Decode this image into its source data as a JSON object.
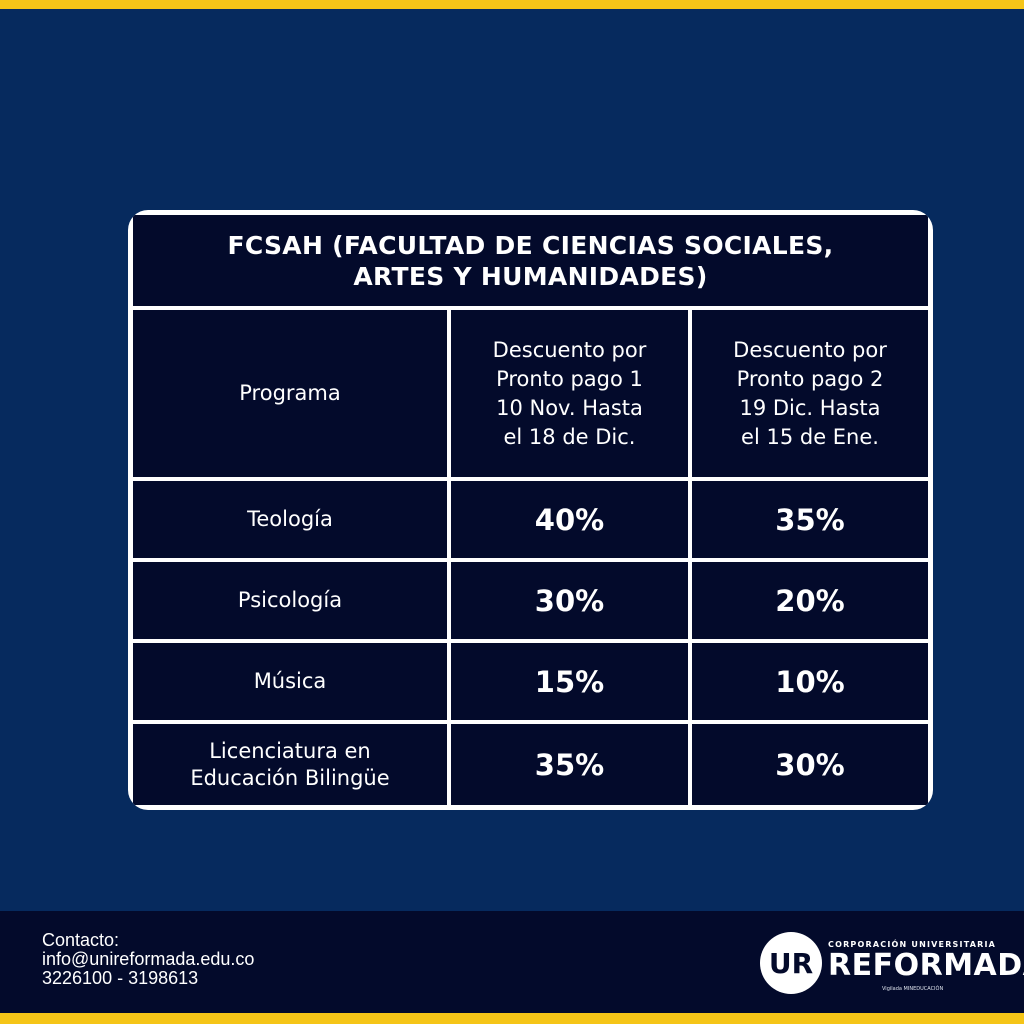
{
  "table": {
    "title_line1": "FCSAH (FACULTAD DE CIENCIAS SOCIALES,",
    "title_line2": "ARTES Y HUMANIDADES)",
    "headers": {
      "program": "Programa",
      "discount1": [
        "Descuento por",
        "Pronto pago 1",
        "10 Nov. Hasta",
        "el 18 de Dic."
      ],
      "discount2": [
        "Descuento por",
        "Pronto pago 2",
        "19 Dic. Hasta",
        "el 15 de Ene."
      ]
    },
    "rows": [
      {
        "program": [
          "Teología"
        ],
        "d1": "40%",
        "d2": "35%"
      },
      {
        "program": [
          "Psicología"
        ],
        "d1": "30%",
        "d2": "20%"
      },
      {
        "program": [
          "Música"
        ],
        "d1": "15%",
        "d2": "10%"
      },
      {
        "program": [
          "Licenciatura en",
          "Educación Bilingüe"
        ],
        "d1": "35%",
        "d2": "30%"
      }
    ]
  },
  "footer": {
    "contact_label": "Contacto:",
    "email": "info@unireformada.edu.co",
    "phones": "3226100 - 3198613"
  },
  "logo": {
    "monogram": "UR",
    "top_text": "CORPORACIÓN UNIVERSITARIA",
    "main_text": "REFORMADA",
    "sub_text": "Vigilada MINEDUCACIÓN"
  },
  "colors": {
    "background": "#062a5e",
    "table_cell": "#030a2b",
    "accent_bar": "#f5c518",
    "grid": "#ffffff"
  }
}
